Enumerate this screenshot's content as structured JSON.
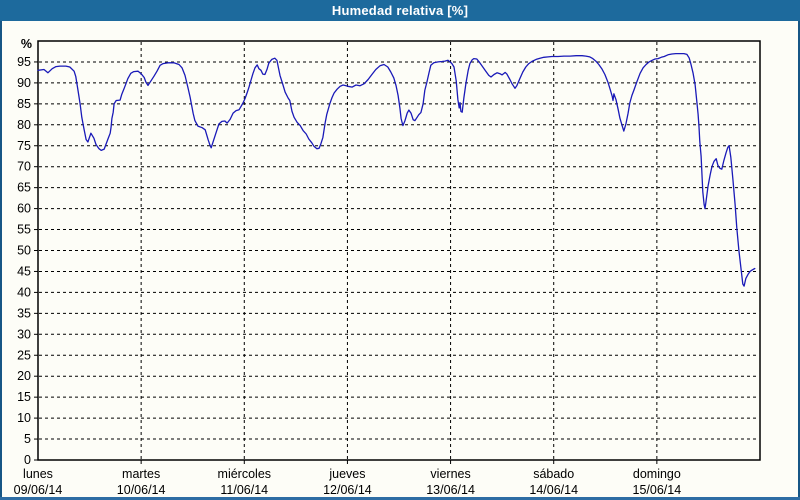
{
  "window": {
    "title": "Humedad relativa [%]"
  },
  "colors": {
    "titlebar_bg": "#1d6a9d",
    "frame_border": "#175685",
    "bottom_border": "#2e6da4",
    "canvas_bg": "#fdfdf7",
    "line": "#1a1ab8",
    "grid": "#000000"
  },
  "chart_data": {
    "type": "line",
    "title": "Humedad relativa [%]",
    "y_unit_label": "%",
    "ylim": [
      0,
      100
    ],
    "ytick_step": 5,
    "ytick_labels": [
      "0",
      "5",
      "10",
      "15",
      "20",
      "25",
      "30",
      "35",
      "40",
      "45",
      "50",
      "55",
      "60",
      "65",
      "70",
      "75",
      "80",
      "85",
      "90",
      "95"
    ],
    "grid": "dashed",
    "legend": "none",
    "x_days": [
      {
        "name": "lunes",
        "date": "09/06/14"
      },
      {
        "name": "martes",
        "date": "10/06/14"
      },
      {
        "name": "miércoles",
        "date": "11/06/14"
      },
      {
        "name": "jueves",
        "date": "12/06/14"
      },
      {
        "name": "viernes",
        "date": "13/06/14"
      },
      {
        "name": "sábado",
        "date": "14/06/14"
      },
      {
        "name": "domingo",
        "date": "15/06/14"
      }
    ],
    "x_hours_range": [
      0,
      168
    ],
    "series": [
      {
        "name": "Humedad relativa",
        "color": "#1a1ab8",
        "x_unit": "hours_since_monday_00",
        "points": [
          [
            0,
            93
          ],
          [
            1.4,
            93.2
          ],
          [
            2.3,
            92.4
          ],
          [
            3.3,
            93.4
          ],
          [
            4.2,
            93.9
          ],
          [
            5.1,
            94
          ],
          [
            6.5,
            94
          ],
          [
            7.4,
            93.8
          ],
          [
            8.4,
            92.8
          ],
          [
            8.8,
            91.5
          ],
          [
            9.3,
            88.2
          ],
          [
            9.8,
            85
          ],
          [
            10.2,
            81.8
          ],
          [
            10.7,
            79
          ],
          [
            11.2,
            76.5
          ],
          [
            11.6,
            75.9
          ],
          [
            12.3,
            78
          ],
          [
            13,
            76.8
          ],
          [
            13.5,
            75.3
          ],
          [
            14.2,
            74.3
          ],
          [
            14.7,
            73.9
          ],
          [
            15.4,
            74.2
          ],
          [
            15.8,
            75.3
          ],
          [
            16.3,
            76.7
          ],
          [
            16.8,
            78
          ],
          [
            17,
            79.5
          ],
          [
            17.2,
            81.5
          ],
          [
            17.5,
            83
          ],
          [
            17.7,
            85
          ],
          [
            18.2,
            85.8
          ],
          [
            19.1,
            85.9
          ],
          [
            19.5,
            87.3
          ],
          [
            20,
            88.6
          ],
          [
            20.5,
            89.9
          ],
          [
            20.9,
            91
          ],
          [
            21.6,
            92.3
          ],
          [
            22.3,
            92.7
          ],
          [
            23.3,
            92.8
          ],
          [
            24,
            92.2
          ],
          [
            24.7,
            91.3
          ],
          [
            25.1,
            90.2
          ],
          [
            25.6,
            89.4
          ],
          [
            26.3,
            90.5
          ],
          [
            27,
            91.6
          ],
          [
            27.7,
            92.8
          ],
          [
            28.4,
            94.2
          ],
          [
            29.1,
            94.6
          ],
          [
            30.2,
            94.8
          ],
          [
            31.6,
            94.8
          ],
          [
            32.8,
            94.4
          ],
          [
            33.5,
            93.6
          ],
          [
            34.2,
            91.8
          ],
          [
            34.9,
            88.8
          ],
          [
            35.4,
            86.6
          ],
          [
            36.1,
            82.8
          ],
          [
            36.5,
            81
          ],
          [
            37.2,
            79.7
          ],
          [
            38.2,
            79.3
          ],
          [
            38.9,
            78.8
          ],
          [
            39.6,
            76.4
          ],
          [
            40,
            75.2
          ],
          [
            40.3,
            74.5
          ],
          [
            40.7,
            75.8
          ],
          [
            41.4,
            78
          ],
          [
            42.1,
            80.2
          ],
          [
            42.8,
            80.8
          ],
          [
            43.5,
            80.9
          ],
          [
            44,
            80.4
          ],
          [
            44.7,
            81.3
          ],
          [
            45.4,
            82.8
          ],
          [
            46.1,
            83.4
          ],
          [
            46.8,
            83.6
          ],
          [
            47.2,
            84.3
          ],
          [
            47.7,
            85.2
          ],
          [
            48.2,
            86.3
          ],
          [
            48.6,
            87.5
          ],
          [
            49.1,
            89
          ],
          [
            49.6,
            90.8
          ],
          [
            50,
            92.2
          ],
          [
            50.5,
            93.6
          ],
          [
            51,
            94.3
          ],
          [
            51.4,
            93.4
          ],
          [
            51.9,
            93
          ],
          [
            52.3,
            92.1
          ],
          [
            52.8,
            92
          ],
          [
            53.3,
            93.3
          ],
          [
            53.7,
            94.7
          ],
          [
            54.4,
            95.6
          ],
          [
            55.1,
            95.9
          ],
          [
            55.6,
            95.4
          ],
          [
            56.3,
            91.8
          ],
          [
            57,
            89.5
          ],
          [
            57.5,
            87.8
          ],
          [
            58.2,
            86.4
          ],
          [
            58.6,
            85.8
          ],
          [
            59.1,
            83.2
          ],
          [
            59.6,
            81.8
          ],
          [
            60.3,
            80.6
          ],
          [
            61,
            79.8
          ],
          [
            61.7,
            78.6
          ],
          [
            62.4,
            77.8
          ],
          [
            63,
            76.6
          ],
          [
            63.7,
            75.7
          ],
          [
            64.2,
            74.9
          ],
          [
            64.9,
            74.3
          ],
          [
            65.4,
            74.4
          ],
          [
            65.8,
            75.4
          ],
          [
            66.3,
            77
          ],
          [
            66.8,
            80.4
          ],
          [
            67.2,
            82.5
          ],
          [
            67.9,
            85
          ],
          [
            68.4,
            86.5
          ],
          [
            68.9,
            87.6
          ],
          [
            69.6,
            88.5
          ],
          [
            70.3,
            89.2
          ],
          [
            71,
            89.5
          ],
          [
            71.7,
            89.3
          ],
          [
            72.1,
            89.2
          ],
          [
            73.1,
            89
          ],
          [
            74,
            89.5
          ],
          [
            74.9,
            89.3
          ],
          [
            75.9,
            89.8
          ],
          [
            76.8,
            90.8
          ],
          [
            77.7,
            92
          ],
          [
            78.6,
            93.2
          ],
          [
            79.6,
            94.1
          ],
          [
            80.5,
            94.4
          ],
          [
            81.4,
            93.8
          ],
          [
            82.1,
            92.6
          ],
          [
            82.8,
            91.2
          ],
          [
            83.3,
            89.4
          ],
          [
            83.8,
            87
          ],
          [
            84.2,
            84
          ],
          [
            84.5,
            81.5
          ],
          [
            84.9,
            79.8
          ],
          [
            85.4,
            81
          ],
          [
            85.9,
            82.8
          ],
          [
            86.3,
            83.5
          ],
          [
            86.8,
            82.8
          ],
          [
            87.3,
            81.2
          ],
          [
            87.7,
            81
          ],
          [
            88.2,
            81.8
          ],
          [
            88.6,
            82.4
          ],
          [
            89.1,
            82.9
          ],
          [
            89.6,
            85
          ],
          [
            90,
            88.2
          ],
          [
            90.5,
            90.2
          ],
          [
            91,
            92.5
          ],
          [
            91.4,
            94.2
          ],
          [
            92.1,
            94.8
          ],
          [
            93.1,
            95
          ],
          [
            94,
            95.1
          ],
          [
            94.7,
            95.2
          ],
          [
            95.4,
            95.4
          ],
          [
            95.9,
            95
          ],
          [
            96.3,
            94.6
          ],
          [
            96.8,
            93.8
          ],
          [
            97.3,
            90.5
          ],
          [
            97.7,
            86
          ],
          [
            98,
            84
          ],
          [
            98.2,
            85.3
          ],
          [
            98.4,
            83.2
          ],
          [
            98.7,
            83
          ],
          [
            99.1,
            86.5
          ],
          [
            99.6,
            90
          ],
          [
            100.1,
            93
          ],
          [
            100.5,
            94.6
          ],
          [
            101,
            95.5
          ],
          [
            101.4,
            95.8
          ],
          [
            102.1,
            95.7
          ],
          [
            102.8,
            94.8
          ],
          [
            103.5,
            93.8
          ],
          [
            104.2,
            92.8
          ],
          [
            104.9,
            91.8
          ],
          [
            105.4,
            91.4
          ],
          [
            106.1,
            92
          ],
          [
            106.8,
            92.4
          ],
          [
            107.5,
            92.2
          ],
          [
            108,
            91.9
          ],
          [
            108.7,
            92.5
          ],
          [
            109.1,
            92.1
          ],
          [
            109.8,
            90.8
          ],
          [
            110.3,
            89.8
          ],
          [
            111,
            88.7
          ],
          [
            111.4,
            89.3
          ],
          [
            112.1,
            91
          ],
          [
            112.8,
            92.6
          ],
          [
            113.5,
            93.8
          ],
          [
            114.2,
            94.6
          ],
          [
            114.9,
            95.1
          ],
          [
            115.9,
            95.6
          ],
          [
            116.8,
            95.9
          ],
          [
            117.7,
            96.1
          ],
          [
            118.7,
            96.2
          ],
          [
            119.6,
            96.3
          ],
          [
            121,
            96.3
          ],
          [
            122.4,
            96.4
          ],
          [
            123.8,
            96.4
          ],
          [
            125.2,
            96.5
          ],
          [
            126.6,
            96.5
          ],
          [
            127.5,
            96.4
          ],
          [
            128.4,
            96.2
          ],
          [
            129.1,
            95.8
          ],
          [
            129.8,
            95.2
          ],
          [
            130.5,
            94.4
          ],
          [
            131.2,
            93.4
          ],
          [
            131.9,
            92
          ],
          [
            132.6,
            90.2
          ],
          [
            133.1,
            88.6
          ],
          [
            133.6,
            86.8
          ],
          [
            133.8,
            85.8
          ],
          [
            134,
            87.4
          ],
          [
            134.5,
            86
          ],
          [
            135,
            83.6
          ],
          [
            135.4,
            81.6
          ],
          [
            135.9,
            79.9
          ],
          [
            136.3,
            78.5
          ],
          [
            136.8,
            80.2
          ],
          [
            137.3,
            82.8
          ],
          [
            137.7,
            85.2
          ],
          [
            138.2,
            87
          ],
          [
            138.7,
            88.4
          ],
          [
            139.4,
            90.4
          ],
          [
            140.1,
            92.3
          ],
          [
            140.8,
            93.6
          ],
          [
            141.5,
            94.4
          ],
          [
            142.2,
            95
          ],
          [
            142.9,
            95.4
          ],
          [
            143.6,
            95.7
          ],
          [
            144.3,
            95.8
          ],
          [
            145,
            96.1
          ],
          [
            145.7,
            96.3
          ],
          [
            146.6,
            96.7
          ],
          [
            147.5,
            96.9
          ],
          [
            148.4,
            97
          ],
          [
            149.4,
            97
          ],
          [
            150.3,
            97
          ],
          [
            151,
            96.8
          ],
          [
            151.5,
            96
          ],
          [
            151.9,
            94.6
          ],
          [
            152.4,
            92.4
          ],
          [
            152.9,
            89.6
          ],
          [
            153.3,
            85.6
          ],
          [
            153.6,
            82.5
          ],
          [
            153.8,
            79.5
          ],
          [
            154,
            76
          ],
          [
            154.3,
            72.5
          ],
          [
            154.5,
            68
          ],
          [
            154.7,
            64
          ],
          [
            155,
            61
          ],
          [
            155.2,
            60
          ],
          [
            155.4,
            61.5
          ],
          [
            155.9,
            65.3
          ],
          [
            156.4,
            68
          ],
          [
            156.8,
            70
          ],
          [
            157.3,
            71.3
          ],
          [
            157.8,
            71.9
          ],
          [
            158.2,
            70.3
          ],
          [
            158.7,
            69.6
          ],
          [
            159.1,
            69.4
          ],
          [
            159.6,
            71.5
          ],
          [
            160.1,
            73.3
          ],
          [
            160.5,
            74.6
          ],
          [
            160.8,
            75
          ],
          [
            161.2,
            72.3
          ],
          [
            161.7,
            67
          ],
          [
            162.2,
            61
          ],
          [
            162.6,
            55.4
          ],
          [
            163.1,
            50
          ],
          [
            163.6,
            45.5
          ],
          [
            164,
            42
          ],
          [
            164.3,
            41.5
          ],
          [
            164.7,
            43.3
          ],
          [
            165.2,
            44.3
          ],
          [
            165.7,
            45
          ],
          [
            166.1,
            45.3
          ],
          [
            166.8,
            45.7
          ]
        ]
      }
    ]
  }
}
